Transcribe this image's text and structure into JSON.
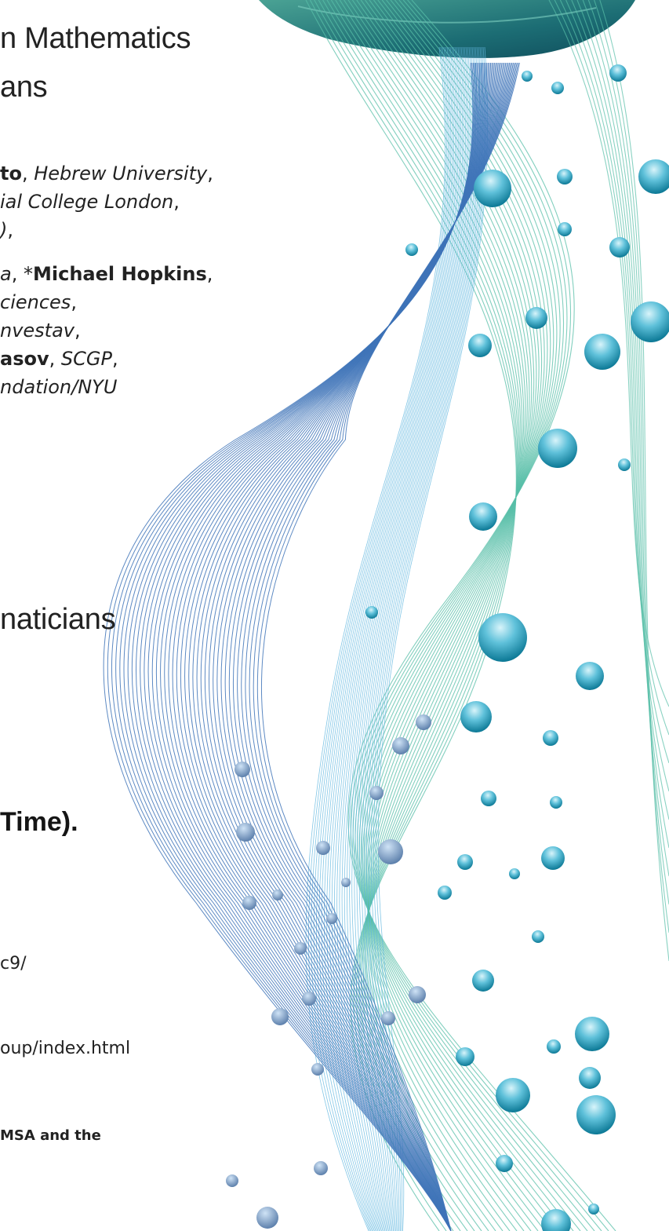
{
  "title": {
    "line1": "n Mathematics",
    "line2": "ans"
  },
  "organizers": [
    {
      "bold": "to",
      "rest": ", ",
      "ital": "Hebrew University",
      "tail": ","
    },
    {
      "bold": "",
      "rest": "",
      "ital": "ial College London",
      "tail": ","
    },
    {
      "bold": "",
      "rest": "",
      "ital": ")",
      "tail": ","
    },
    {
      "bold": "",
      "rest": "",
      "ital": "a",
      "tail": ", *",
      "bold2": "Michael Hopkins",
      "tail2": ","
    },
    {
      "bold": "",
      "rest": "",
      "ital": "ciences",
      "tail": ","
    },
    {
      "bold": "",
      "rest": "",
      "ital": "nvestav",
      "tail": ","
    },
    {
      "bold": "asov",
      "rest": ", ",
      "ital": "SCGP",
      "tail": ","
    },
    {
      "bold": "",
      "rest": "",
      "ital": "ndation/NYU",
      "tail": ""
    }
  ],
  "section_heading": "naticians",
  "time_text": "Time).",
  "link1": "c9/",
  "link2": "oup/index.html",
  "note": "MSA and the",
  "colors": {
    "blue_wave": "#3f74b8",
    "teal_wave": "#58bfa8",
    "light_blue": "#63b8e0",
    "bubble_top": "#c7eef7",
    "bubble_bottom": "#0d7fa0",
    "disc": "#155e6e"
  }
}
